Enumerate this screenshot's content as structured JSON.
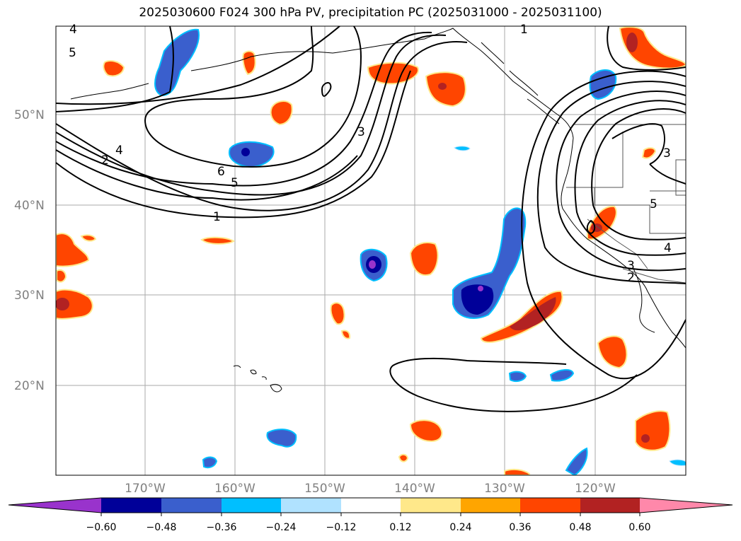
{
  "title": "2025030600 F024 300 hPa PV, precipitation PC (2025031000 - 2025031100)",
  "map": {
    "lat_ticks": [
      "50°N",
      "40°N",
      "30°N",
      "20°N"
    ],
    "lon_ticks": [
      "170°W",
      "160°W",
      "150°W",
      "140°W",
      "130°W",
      "120°W"
    ],
    "grid": true
  },
  "colorbar": {
    "levels": [
      "−0.60",
      "−0.48",
      "−0.36",
      "−0.24",
      "−0.12",
      "0.12",
      "0.24",
      "0.36",
      "0.48",
      "0.60"
    ],
    "colors": [
      "#9933cc",
      "#000099",
      "#3a5fcd",
      "#00bfff",
      "#b0e2ff",
      "#ffffff",
      "#ffe88a",
      "#ffa500",
      "#ff4500",
      "#b22222",
      "#ff88aa"
    ],
    "extend": "both"
  },
  "pv_contour_labels": [
    "4",
    "5",
    "1",
    "6",
    "5",
    "4",
    "2",
    "1",
    "3",
    "3",
    "5",
    "4",
    "3",
    "2"
  ]
}
